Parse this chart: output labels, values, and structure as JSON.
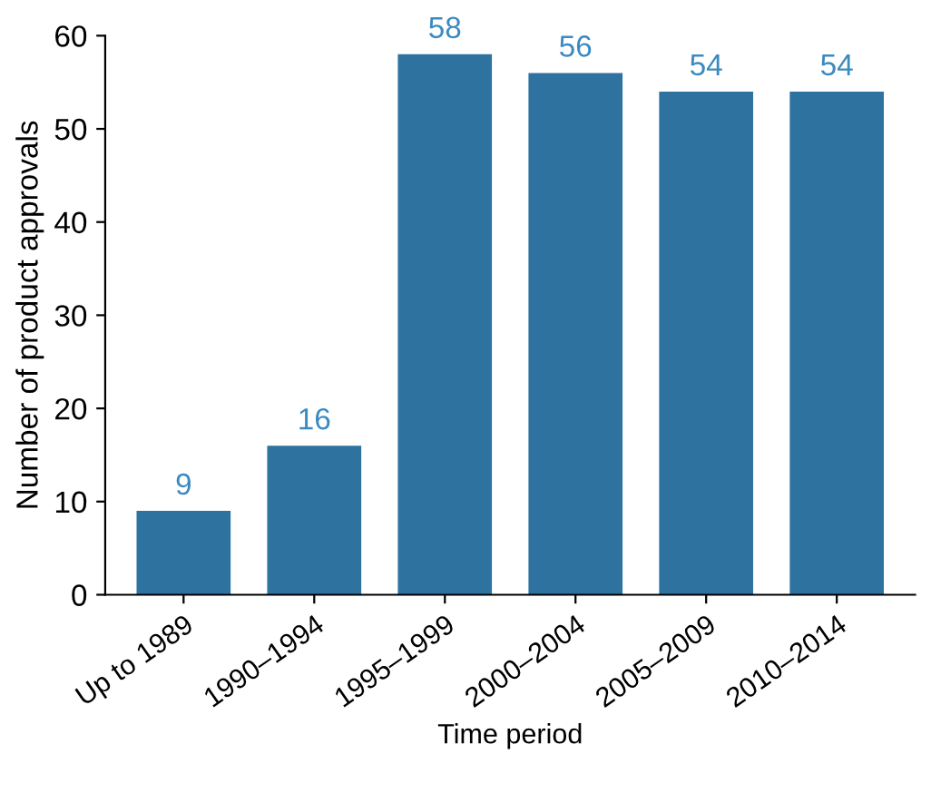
{
  "chart_data": {
    "type": "bar",
    "categories": [
      "Up to 1989",
      "1990–1994",
      "1995–1999",
      "2000–2004",
      "2005–2009",
      "2010–2014"
    ],
    "values": [
      9,
      16,
      58,
      56,
      54,
      54
    ],
    "color": "#2e73a0",
    "xlabel": "Time period",
    "ylabel": "Number of product approvals",
    "ylim": [
      0,
      60
    ],
    "yticks": [
      0,
      10,
      20,
      30,
      40,
      50,
      60
    ],
    "data_labels": true,
    "grid": false,
    "legend": false
  }
}
